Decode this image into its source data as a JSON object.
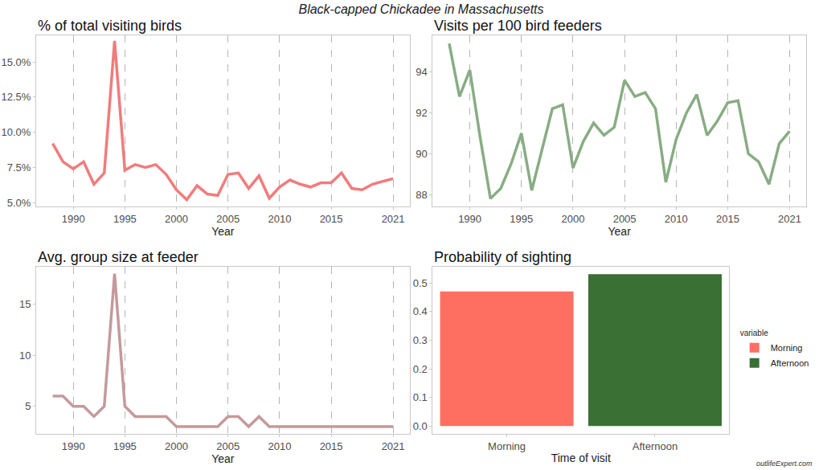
{
  "title": "Black-capped Chickadee in Massachusetts",
  "source": "outlifeExpert.com",
  "chart_data": [
    {
      "type": "line",
      "title": "% of total visiting birds",
      "xlabel": "Year",
      "x": [
        1988,
        1989,
        1990,
        1991,
        1992,
        1993,
        1994,
        1995,
        1996,
        1997,
        1998,
        1999,
        2000,
        2001,
        2002,
        2003,
        2004,
        2005,
        2006,
        2007,
        2008,
        2009,
        2010,
        2011,
        2012,
        2013,
        2014,
        2015,
        2016,
        2017,
        2018,
        2019,
        2020,
        2021
      ],
      "values": [
        9.2,
        7.9,
        7.4,
        7.9,
        6.3,
        7.1,
        16.5,
        7.3,
        7.7,
        7.5,
        7.7,
        7.0,
        5.9,
        5.2,
        6.2,
        5.6,
        5.5,
        7.0,
        7.1,
        6.0,
        6.9,
        5.3,
        6.1,
        6.6,
        6.3,
        6.1,
        6.4,
        6.4,
        7.1,
        6.0,
        5.9,
        6.3,
        6.5,
        6.7
      ],
      "color": "#f07c7c",
      "xlim": [
        1986.4,
        2022.6
      ],
      "xticks": [
        1990,
        1995,
        2000,
        2005,
        2010,
        2015,
        2021
      ],
      "ylim": [
        4.7,
        16.9
      ],
      "yticks": [
        {
          "value": 5,
          "label": "5.0%"
        },
        {
          "value": 7.5,
          "label": "7.5%"
        },
        {
          "value": 10,
          "label": "10.0%"
        },
        {
          "value": 12.5,
          "label": "12.5%"
        },
        {
          "value": 15,
          "label": "15.0%"
        }
      ],
      "grid": "x"
    },
    {
      "type": "line",
      "title": "Visits per 100 bird feeders",
      "xlabel": "Year",
      "x": [
        1988,
        1989,
        1990,
        1991,
        1992,
        1993,
        1994,
        1995,
        1996,
        1997,
        1998,
        1999,
        2000,
        2001,
        2002,
        2003,
        2004,
        2005,
        2006,
        2007,
        2008,
        2009,
        2010,
        2011,
        2012,
        2013,
        2014,
        2015,
        2016,
        2017,
        2018,
        2019,
        2020,
        2021
      ],
      "values": [
        95.4,
        92.8,
        94.1,
        90.8,
        87.8,
        88.3,
        89.5,
        91.0,
        88.2,
        90.2,
        92.2,
        92.4,
        89.3,
        90.6,
        91.5,
        90.9,
        91.3,
        93.6,
        92.8,
        93.0,
        92.2,
        88.6,
        90.7,
        92.0,
        92.9,
        90.9,
        91.6,
        92.5,
        92.6,
        90.0,
        89.6,
        88.5,
        90.5,
        91.1
      ],
      "color": "#88ad84",
      "xlim": [
        1986.4,
        2022.6
      ],
      "xticks": [
        1990,
        1995,
        2000,
        2005,
        2010,
        2015,
        2021
      ],
      "ylim": [
        87.4,
        95.8
      ],
      "yticks": [
        88,
        90,
        92,
        94
      ],
      "grid": "x"
    },
    {
      "type": "line",
      "title": "Avg. group size at feeder",
      "xlabel": "Year",
      "x": [
        1988,
        1989,
        1990,
        1991,
        1992,
        1993,
        1994,
        1995,
        1996,
        1997,
        1998,
        1999,
        2000,
        2001,
        2002,
        2003,
        2004,
        2005,
        2006,
        2007,
        2008,
        2009,
        2010,
        2011,
        2012,
        2013,
        2014,
        2015,
        2016,
        2017,
        2018,
        2019,
        2020,
        2021
      ],
      "values": [
        6,
        6,
        5,
        5,
        4,
        5,
        18,
        5,
        4,
        4,
        4,
        4,
        3,
        3,
        3,
        3,
        3,
        4,
        4,
        3,
        4,
        3,
        3,
        3,
        3,
        3,
        3,
        3,
        3,
        3,
        3,
        3,
        3,
        3
      ],
      "color": "#c49a9c",
      "xlim": [
        1986.4,
        2022.6
      ],
      "xticks": [
        1990,
        1995,
        2000,
        2005,
        2010,
        2015,
        2021
      ],
      "ylim": [
        2.3,
        18.7
      ],
      "yticks": [
        5,
        10,
        15
      ],
      "grid": "x"
    },
    {
      "type": "bar",
      "title": "Probability of sighting",
      "xlabel": "Time of visit",
      "categories": [
        "Morning",
        "Afternoon"
      ],
      "series": [
        {
          "name": "Morning",
          "color": "#ff6f61",
          "values": [
            0.47,
            null
          ]
        },
        {
          "name": "Afternoon",
          "color": "#3a7034",
          "values": [
            null,
            0.53
          ]
        }
      ],
      "ylim": [
        -0.027,
        0.557
      ],
      "yticks": [
        {
          "value": 0,
          "label": "0.0"
        },
        0.1,
        0.2,
        0.3,
        0.4,
        0.5
      ],
      "legend_title": "variable",
      "legend": "right",
      "grid": false
    }
  ]
}
